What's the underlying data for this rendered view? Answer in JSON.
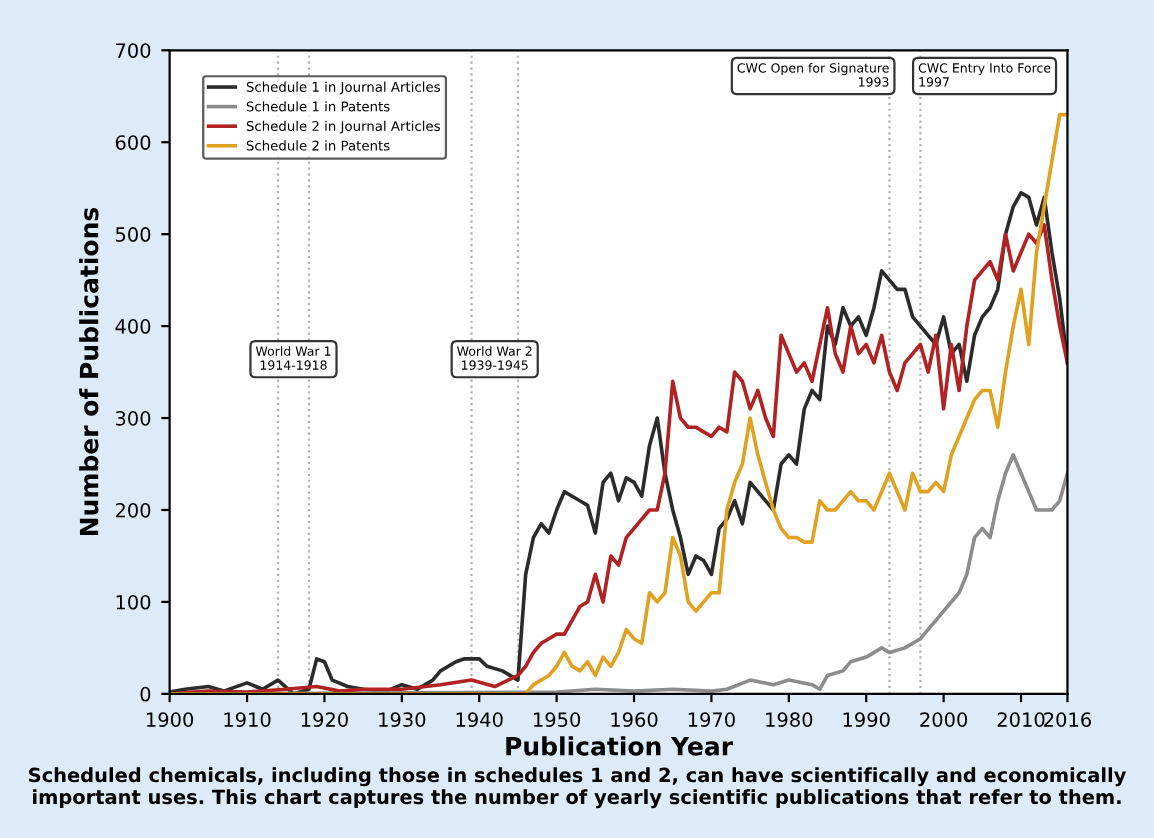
{
  "chart_data": {
    "type": "line",
    "xlabel": "Publication Year",
    "ylabel": "Number of Publications",
    "xlim": [
      1900,
      2016
    ],
    "xticks": [
      1900,
      1910,
      1920,
      1930,
      1940,
      1950,
      1960,
      1970,
      1980,
      1990,
      2000,
      2010,
      2016
    ],
    "ylim": [
      0,
      700
    ],
    "yticks": [
      0,
      100,
      200,
      300,
      400,
      500,
      600,
      700
    ],
    "grid": false,
    "legend": "top left",
    "marker": "none",
    "line_style": "solid",
    "series": [
      {
        "name": "Schedule 1 in Journal Articles",
        "color": "#2b2b2b",
        "x": [
          1900,
          1902,
          1905,
          1907,
          1910,
          1912,
          1914,
          1916,
          1918,
          1919,
          1920,
          1921,
          1923,
          1925,
          1928,
          1930,
          1932,
          1934,
          1935,
          1937,
          1938,
          1940,
          1941,
          1943,
          1945,
          1946,
          1947,
          1948,
          1949,
          1950,
          1951,
          1952,
          1953,
          1954,
          1955,
          1956,
          1957,
          1958,
          1959,
          1960,
          1961,
          1962,
          1963,
          1964,
          1965,
          1966,
          1967,
          1968,
          1969,
          1970,
          1971,
          1972,
          1973,
          1974,
          1975,
          1976,
          1977,
          1978,
          1979,
          1980,
          1981,
          1982,
          1983,
          1984,
          1985,
          1986,
          1987,
          1988,
          1989,
          1990,
          1991,
          1992,
          1993,
          1994,
          1995,
          1996,
          1997,
          1998,
          1999,
          2000,
          2001,
          2002,
          2003,
          2004,
          2005,
          2006,
          2007,
          2008,
          2009,
          2010,
          2011,
          2012,
          2013,
          2014,
          2015,
          2016
        ],
        "values": [
          2,
          5,
          8,
          3,
          12,
          5,
          15,
          0,
          5,
          38,
          35,
          15,
          8,
          5,
          3,
          10,
          5,
          15,
          25,
          35,
          38,
          38,
          30,
          25,
          15,
          130,
          170,
          185,
          175,
          200,
          220,
          215,
          210,
          205,
          175,
          230,
          240,
          210,
          235,
          230,
          215,
          270,
          300,
          240,
          200,
          170,
          130,
          150,
          145,
          130,
          180,
          190,
          210,
          185,
          230,
          220,
          210,
          200,
          250,
          260,
          250,
          310,
          330,
          320,
          400,
          380,
          420,
          400,
          410,
          390,
          420,
          460,
          450,
          440,
          440,
          410,
          400,
          390,
          380,
          410,
          370,
          380,
          340,
          390,
          410,
          420,
          440,
          500,
          530,
          545,
          540,
          510,
          540,
          480,
          430,
          360
        ]
      },
      {
        "name": "Schedule 1 in Patents",
        "color": "#8c8c8c",
        "x": [
          1900,
          1950,
          1955,
          1960,
          1965,
          1970,
          1972,
          1975,
          1978,
          1980,
          1983,
          1984,
          1985,
          1987,
          1988,
          1990,
          1992,
          1993,
          1995,
          1997,
          1999,
          2000,
          2002,
          2003,
          2004,
          2005,
          2006,
          2007,
          2008,
          2009,
          2010,
          2011,
          2012,
          2013,
          2014,
          2015,
          2016
        ],
        "values": [
          0,
          2,
          5,
          3,
          5,
          3,
          5,
          15,
          10,
          15,
          10,
          5,
          20,
          25,
          35,
          40,
          50,
          45,
          50,
          60,
          80,
          90,
          110,
          130,
          170,
          180,
          170,
          210,
          240,
          260,
          240,
          220,
          200,
          200,
          200,
          210,
          240
        ]
      },
      {
        "name": "Schedule 2 in Journal Articles",
        "color": "#b22222",
        "x": [
          1900,
          1905,
          1910,
          1915,
          1919,
          1922,
          1925,
          1930,
          1935,
          1939,
          1942,
          1945,
          1946,
          1947,
          1948,
          1949,
          1950,
          1951,
          1952,
          1953,
          1954,
          1955,
          1956,
          1957,
          1958,
          1959,
          1960,
          1961,
          1962,
          1963,
          1964,
          1965,
          1966,
          1967,
          1968,
          1969,
          1970,
          1971,
          1972,
          1973,
          1974,
          1975,
          1976,
          1977,
          1978,
          1979,
          1980,
          1981,
          1982,
          1983,
          1984,
          1985,
          1986,
          1987,
          1988,
          1989,
          1990,
          1991,
          1992,
          1993,
          1994,
          1995,
          1996,
          1997,
          1998,
          1999,
          2000,
          2001,
          2002,
          2003,
          2004,
          2005,
          2006,
          2007,
          2008,
          2009,
          2010,
          2011,
          2012,
          2013,
          2014,
          2015,
          2016
        ],
        "values": [
          0,
          3,
          2,
          5,
          8,
          3,
          5,
          5,
          10,
          15,
          8,
          20,
          30,
          45,
          55,
          60,
          65,
          65,
          80,
          95,
          100,
          130,
          100,
          150,
          140,
          170,
          180,
          190,
          200,
          200,
          240,
          340,
          300,
          290,
          290,
          285,
          280,
          290,
          285,
          350,
          340,
          310,
          330,
          300,
          280,
          390,
          370,
          350,
          360,
          340,
          380,
          420,
          370,
          350,
          400,
          370,
          380,
          360,
          390,
          350,
          330,
          360,
          370,
          380,
          350,
          390,
          310,
          380,
          330,
          400,
          450,
          460,
          470,
          450,
          500,
          460,
          480,
          500,
          490,
          510,
          450,
          400,
          360
        ]
      },
      {
        "name": "Schedule 2 in Patents",
        "color": "#e0a020",
        "x": [
          1900,
          1946,
          1947,
          1948,
          1949,
          1950,
          1951,
          1952,
          1953,
          1954,
          1955,
          1956,
          1957,
          1958,
          1959,
          1960,
          1961,
          1962,
          1963,
          1964,
          1965,
          1966,
          1967,
          1968,
          1969,
          1970,
          1971,
          1972,
          1973,
          1974,
          1975,
          1976,
          1977,
          1978,
          1979,
          1980,
          1981,
          1982,
          1983,
          1984,
          1985,
          1986,
          1987,
          1988,
          1989,
          1990,
          1991,
          1992,
          1993,
          1994,
          1995,
          1996,
          1997,
          1998,
          1999,
          2000,
          2001,
          2002,
          2003,
          2004,
          2005,
          2006,
          2007,
          2008,
          2009,
          2010,
          2011,
          2012,
          2013,
          2014,
          2015,
          2016
        ],
        "values": [
          0,
          0,
          10,
          15,
          20,
          30,
          45,
          30,
          25,
          35,
          20,
          40,
          30,
          45,
          70,
          60,
          55,
          110,
          100,
          110,
          170,
          150,
          100,
          90,
          100,
          110,
          110,
          200,
          230,
          250,
          300,
          260,
          230,
          200,
          180,
          170,
          170,
          165,
          165,
          210,
          200,
          200,
          210,
          220,
          210,
          210,
          200,
          220,
          240,
          220,
          200,
          240,
          220,
          220,
          230,
          220,
          260,
          280,
          300,
          320,
          330,
          330,
          290,
          350,
          400,
          440,
          380,
          480,
          530,
          580,
          630,
          630
        ]
      }
    ],
    "ref_lines": [
      {
        "axis": "x",
        "value": 1914,
        "label": "World War 1\n1914-1918",
        "color": "#b0b0b0",
        "line_style": "dotted"
      },
      {
        "axis": "x",
        "value": 1918,
        "label": null,
        "color": "#b0b0b0",
        "line_style": "dotted"
      },
      {
        "axis": "x",
        "value": 1939,
        "label": "World War 2\n1939-1945",
        "color": "#b0b0b0",
        "line_style": "dotted"
      },
      {
        "axis": "x",
        "value": 1945,
        "label": null,
        "color": "#b0b0b0",
        "line_style": "dotted"
      },
      {
        "axis": "x",
        "value": 1993,
        "label": "CWC Open for Signature\n1993",
        "color": "#b0b0b0",
        "line_style": "dotted"
      },
      {
        "axis": "x",
        "value": 1997,
        "label": "CWC Entry Into Force\n1997",
        "color": "#b0b0b0",
        "line_style": "dotted"
      }
    ],
    "annotations": [
      "Scheduled chemicals, including those in schedules 1 and 2, can have scientifically and economically important uses. This chart captures the number of yearly scientific publications that refer to them."
    ]
  }
}
